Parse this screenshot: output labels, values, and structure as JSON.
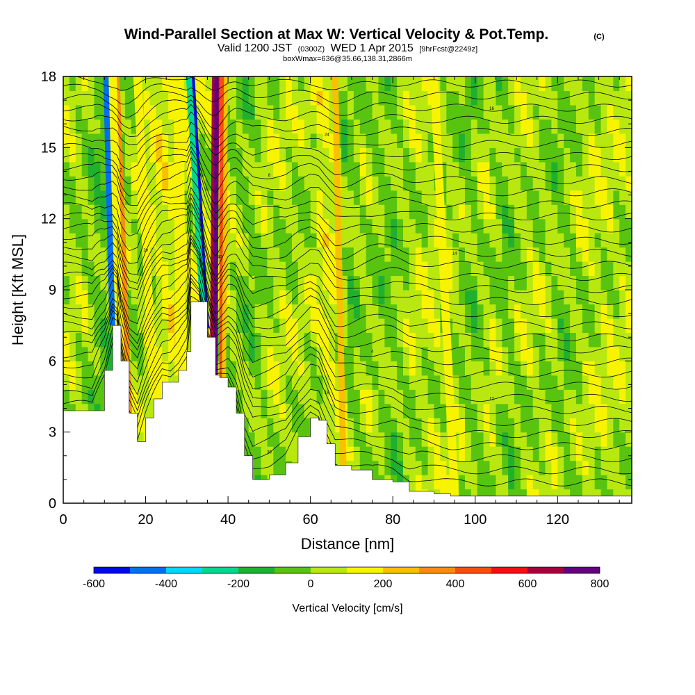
{
  "chart_data": {
    "type": "heatmap",
    "title": "Wind-Parallel Section at Max W: Vertical Velocity & Pot.Temp.",
    "title_badge": "(C)",
    "subtitle": {
      "prefix": "Valid 1200 JST",
      "utc": "(0300Z)",
      "date": "WED 1 Apr 2015",
      "forecast": "[9hrFcst@2249z]"
    },
    "subtitle2": "boxWmax=636@35.66,138.31,2866m",
    "xlabel": "Distance [nm]",
    "ylabel": "Height [Kft MSL]",
    "xlim": [
      0,
      138
    ],
    "ylim": [
      0,
      18
    ],
    "xticks": [
      0,
      20,
      40,
      60,
      80,
      100,
      120
    ],
    "yticks": [
      0,
      3,
      6,
      9,
      12,
      15,
      18
    ],
    "colorbar": {
      "label": "Vertical Velocity [cm/s]",
      "bounds": [
        -600,
        -500,
        -400,
        -300,
        -200,
        -100,
        0,
        100,
        200,
        300,
        400,
        500,
        600,
        700,
        800
      ],
      "tick_labels": [
        -600,
        -400,
        -200,
        0,
        200,
        400,
        600,
        800
      ],
      "colors": [
        "#0008e8",
        "#0070f0",
        "#00d8f8",
        "#00d890",
        "#20b030",
        "#58c410",
        "#b8e810",
        "#f8f400",
        "#f8c000",
        "#f88c10",
        "#f84c10",
        "#f80e0e",
        "#a8003e",
        "#640080"
      ]
    },
    "terrain": {
      "distance_nm": [
        0,
        7,
        10,
        12,
        13,
        14,
        16,
        18,
        20,
        22,
        24,
        26,
        28,
        30,
        31,
        33,
        35,
        37,
        38,
        40,
        42,
        44,
        46,
        50,
        54,
        57,
        60,
        62,
        64,
        66,
        70,
        75,
        80,
        84,
        87,
        90,
        94,
        100,
        110,
        120,
        130,
        138
      ],
      "height_kft": [
        3.9,
        3.9,
        5.6,
        7.5,
        7.5,
        6.0,
        3.8,
        2.6,
        3.6,
        4.4,
        5.1,
        5.1,
        5.6,
        6.4,
        8.5,
        8.5,
        7.0,
        5.4,
        5.3,
        4.9,
        3.8,
        2.0,
        1.0,
        1.2,
        1.7,
        2.8,
        3.6,
        3.5,
        2.5,
        1.6,
        1.4,
        1.0,
        0.9,
        0.5,
        0.5,
        0.4,
        0.3,
        0.3,
        0.3,
        0.3,
        0.3,
        0.3
      ]
    },
    "w_background": {
      "distance_nm": [
        0,
        6,
        10,
        20,
        26,
        42,
        46,
        50,
        55,
        60,
        62,
        64,
        68,
        70,
        74,
        80,
        85,
        90,
        95,
        100,
        104,
        108,
        112,
        118,
        122,
        126,
        130,
        138
      ],
      "w_cm_s": [
        50,
        20,
        -50,
        50,
        120,
        30,
        -40,
        40,
        40,
        30,
        60,
        120,
        60,
        -40,
        30,
        -30,
        40,
        60,
        40,
        -40,
        60,
        -40,
        40,
        30,
        -30,
        40,
        60,
        50
      ]
    },
    "w_bands": [
      {
        "x_top": 10.5,
        "x_bottom": 12.0,
        "width_nm": 1.6,
        "w_cm_s": -450
      },
      {
        "x_top": 13.0,
        "x_bottom": 16.0,
        "width_nm": 1.4,
        "w_cm_s": 350
      },
      {
        "x_top": 12.0,
        "x_bottom": 13.8,
        "width_nm": 2.0,
        "w_cm_s": 150
      },
      {
        "x_top": 18.0,
        "x_bottom": 22.0,
        "width_nm": 2.0,
        "w_cm_s": 150
      },
      {
        "x_top": 31.0,
        "x_bottom": 34.5,
        "width_nm": 1.8,
        "w_cm_s": -550
      },
      {
        "x_top": 30.5,
        "x_bottom": 34.0,
        "width_nm": 1.4,
        "w_cm_s": -300
      },
      {
        "x_top": 37.0,
        "x_bottom": 36.5,
        "width_nm": 1.8,
        "w_cm_s": 650
      },
      {
        "x_top": 37.2,
        "x_bottom": 37.0,
        "width_nm": 1.0,
        "w_cm_s": 750
      },
      {
        "x_top": 38.5,
        "x_bottom": 38.5,
        "width_nm": 1.2,
        "w_cm_s": 450
      },
      {
        "x_top": 39.5,
        "x_bottom": 39.0,
        "width_nm": 1.0,
        "w_cm_s": 200
      },
      {
        "x_top": 28.0,
        "x_bottom": 28.5,
        "width_nm": 2.5,
        "w_cm_s": 150
      },
      {
        "x_top": 66.0,
        "x_bottom": 68.0,
        "width_nm": 1.5,
        "w_cm_s": 250
      },
      {
        "x_top": 90.0,
        "x_bottom": 95.0,
        "width_nm": 2.0,
        "w_cm_s": 150
      }
    ],
    "theta_contours": {
      "count": 34,
      "color": "#000000",
      "labels": [
        "40",
        "30",
        "24",
        "20",
        "18",
        "16",
        "14",
        "12",
        "10",
        "2",
        "4",
        "6",
        "8"
      ]
    }
  }
}
